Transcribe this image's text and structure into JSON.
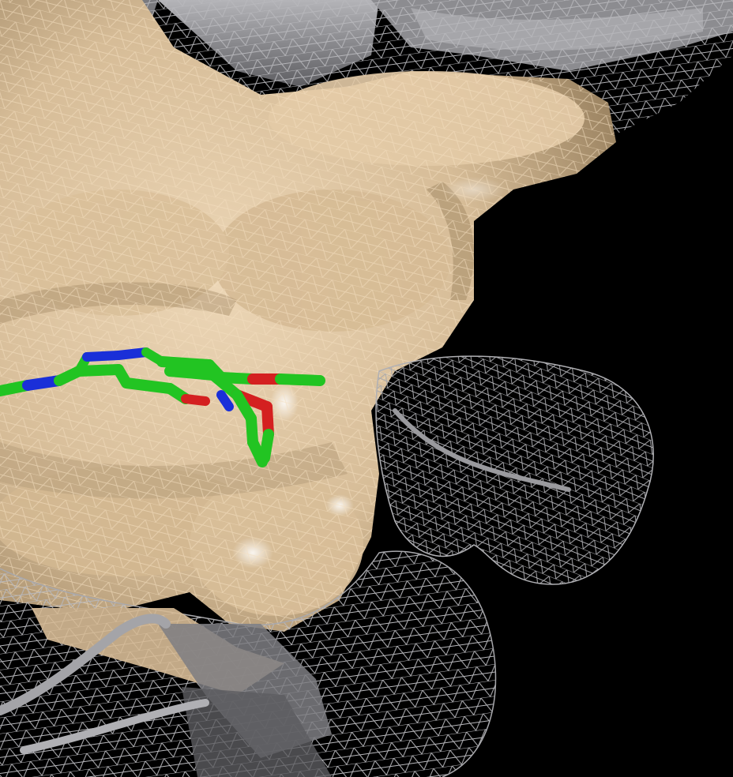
{
  "scene": {
    "kind": "molecular-surface-render",
    "background_color": "#000000",
    "colors": {
      "surface_fill": "#dcc3a0",
      "surface_shadow": "#a8906c",
      "surface_highlight": "#f6e6cc",
      "mesh_wheat": "#f2dcba",
      "mesh_gray": "#b4b4b8",
      "cartoon_gray": "#8e8e92",
      "cartoon_wheat": "#d9bd98",
      "carbon": "#22c422",
      "nitrogen": "#1a2fd8",
      "oxygen": "#d42020"
    },
    "objects": [
      {
        "name": "protein-surface",
        "color": "surface_fill"
      },
      {
        "name": "wheat-mesh",
        "color": "mesh_wheat"
      },
      {
        "name": "gray-mesh",
        "color": "mesh_gray"
      },
      {
        "name": "cartoon-ribbon",
        "color": "cartoon_gray"
      },
      {
        "name": "ligand-sticks",
        "color": "carbon"
      }
    ]
  }
}
